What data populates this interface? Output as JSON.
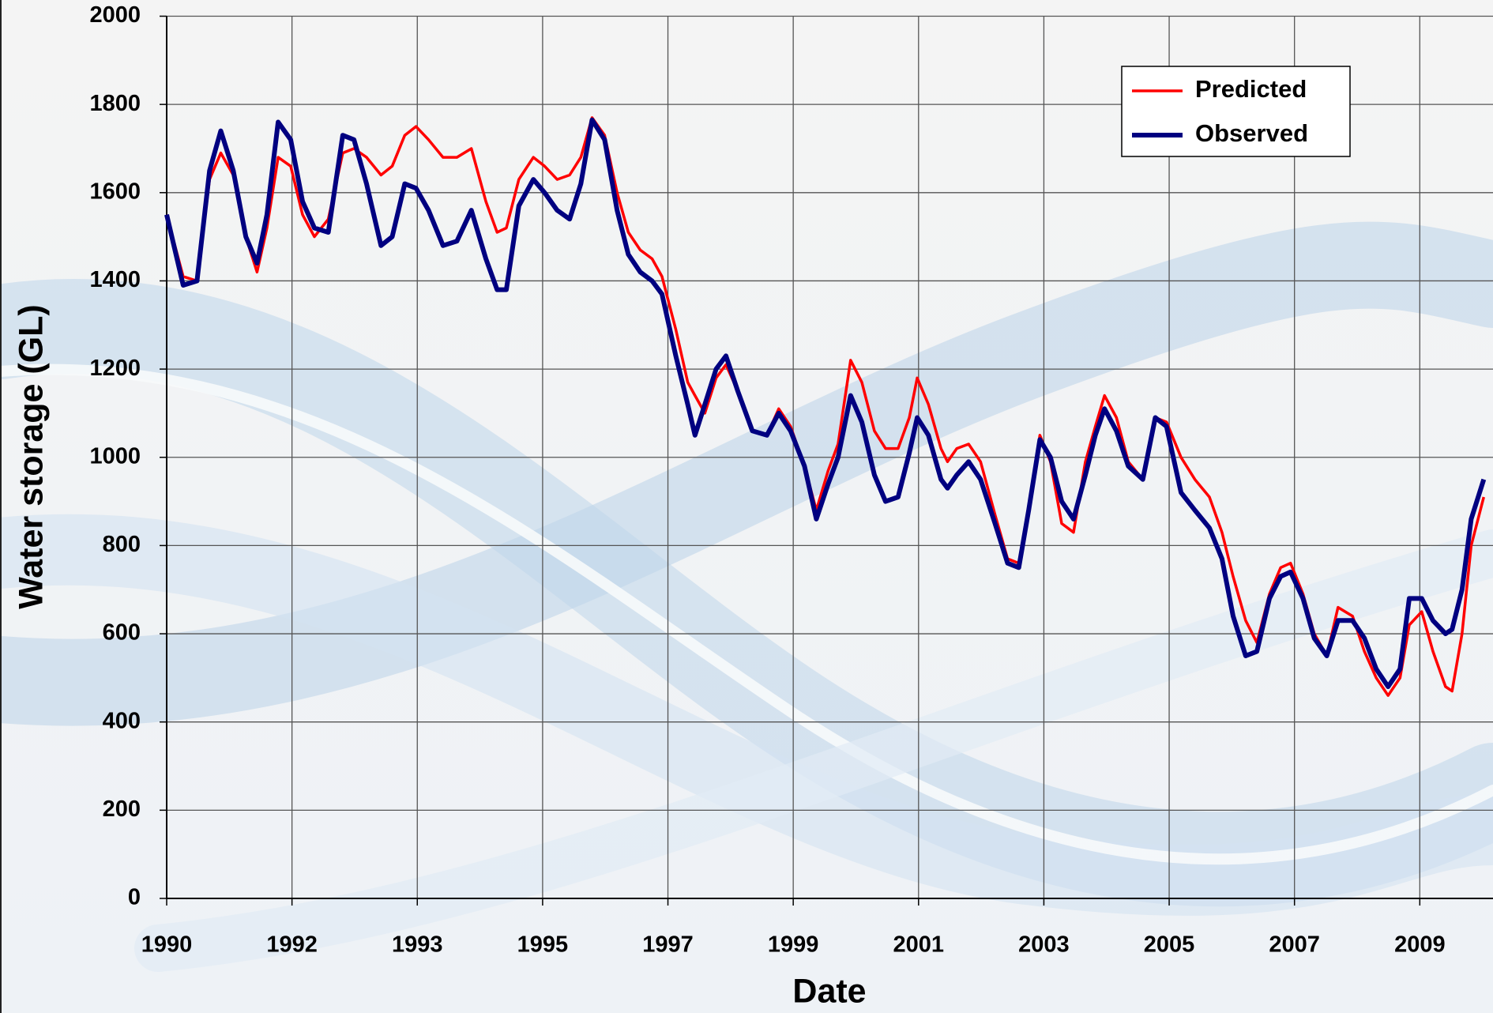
{
  "chart_data": {
    "type": "line",
    "x_label": "Date",
    "y_label": "Water storage (GL)",
    "x": [
      1990.0,
      1990.25,
      1990.46,
      1990.65,
      1990.82,
      1991.01,
      1991.2,
      1991.37,
      1991.52,
      1991.69,
      1991.88,
      1992.06,
      1992.24,
      1992.45,
      1992.67,
      1992.84,
      1993.03,
      1993.25,
      1993.42,
      1993.61,
      1993.78,
      1993.97,
      1994.19,
      1994.4,
      1994.62,
      1994.84,
      1995.01,
      1995.15,
      1995.34,
      1995.56,
      1995.73,
      1995.92,
      1996.11,
      1996.28,
      1996.45,
      1996.64,
      1996.83,
      1997.0,
      1997.18,
      1997.36,
      1997.51,
      1997.72,
      1997.9,
      1998.01,
      1998.16,
      1998.33,
      1998.48,
      1998.66,
      1998.88,
      1999.1,
      1999.28,
      1999.46,
      1999.67,
      1999.85,
      2000.03,
      2000.18,
      2000.37,
      2000.54,
      2000.73,
      2000.9,
      2001.09,
      2001.26,
      2001.38,
      2001.55,
      2001.74,
      2001.84,
      2001.98,
      2002.16,
      2002.34,
      2002.56,
      2002.75,
      2002.92,
      2003.07,
      2003.24,
      2003.4,
      2003.57,
      2003.75,
      2003.93,
      2004.08,
      2004.22,
      2004.4,
      2004.58,
      2004.8,
      2004.99,
      2005.16,
      2005.38,
      2005.59,
      2005.81,
      2006.0,
      2006.17,
      2006.36,
      2006.53,
      2006.72,
      2006.89,
      2007.04,
      2007.23,
      2007.4,
      2007.59,
      2007.76,
      2007.98,
      2008.16,
      2008.34,
      2008.52,
      2008.7,
      2008.84,
      2009.03,
      2009.2,
      2009.39,
      2009.49,
      2009.64,
      2009.78,
      2009.97
    ],
    "series": [
      {
        "name": "Predicted",
        "color": "#ff0000",
        "values": [
          1550,
          1410,
          1400,
          1630,
          1690,
          1640,
          1500,
          1420,
          1520,
          1680,
          1660,
          1550,
          1500,
          1540,
          1690,
          1700,
          1680,
          1640,
          1660,
          1730,
          1750,
          1720,
          1680,
          1680,
          1700,
          1580,
          1510,
          1520,
          1630,
          1680,
          1660,
          1630,
          1640,
          1680,
          1770,
          1730,
          1600,
          1510,
          1470,
          1450,
          1410,
          1290,
          1170,
          1140,
          1100,
          1180,
          1210,
          1150,
          1060,
          1050,
          1110,
          1070,
          980,
          880,
          970,
          1030,
          1220,
          1170,
          1060,
          1020,
          1020,
          1090,
          1180,
          1120,
          1020,
          990,
          1020,
          1030,
          990,
          870,
          770,
          760,
          890,
          1050,
          990,
          850,
          830,
          990,
          1070,
          1140,
          1090,
          990,
          950,
          1090,
          1080,
          1000,
          950,
          910,
          830,
          730,
          630,
          580,
          690,
          750,
          760,
          690,
          600,
          550,
          660,
          640,
          560,
          500,
          460,
          500,
          620,
          650,
          560,
          480,
          470,
          600,
          800,
          910
        ]
      },
      {
        "name": "Observed",
        "color": "#000080",
        "values": [
          1550,
          1390,
          1400,
          1650,
          1740,
          1650,
          1500,
          1440,
          1550,
          1760,
          1720,
          1580,
          1520,
          1510,
          1730,
          1720,
          1620,
          1480,
          1500,
          1620,
          1610,
          1560,
          1480,
          1490,
          1560,
          1450,
          1380,
          1380,
          1570,
          1630,
          1600,
          1560,
          1540,
          1620,
          1765,
          1720,
          1560,
          1460,
          1420,
          1400,
          1370,
          1230,
          1120,
          1050,
          1120,
          1200,
          1230,
          1150,
          1060,
          1050,
          1100,
          1060,
          980,
          860,
          940,
          1000,
          1140,
          1080,
          960,
          900,
          910,
          1010,
          1090,
          1050,
          950,
          930,
          960,
          990,
          950,
          850,
          760,
          750,
          880,
          1040,
          1000,
          900,
          860,
          960,
          1050,
          1110,
          1060,
          980,
          950,
          1090,
          1070,
          920,
          880,
          840,
          770,
          640,
          550,
          560,
          680,
          730,
          740,
          680,
          590,
          550,
          630,
          630,
          590,
          520,
          480,
          520,
          680,
          680,
          630,
          600,
          610,
          700,
          860,
          950
        ]
      }
    ],
    "xlim": [
      1990,
      2010.11
    ],
    "ylim": [
      0,
      2000
    ],
    "xticks": [
      {
        "value": 1990,
        "label": "1990"
      },
      {
        "value": 1991.9,
        "label": "1992"
      },
      {
        "value": 1993.8,
        "label": "1993"
      },
      {
        "value": 1995.7,
        "label": "1995"
      },
      {
        "value": 1997.6,
        "label": "1997"
      },
      {
        "value": 1999.5,
        "label": "1999"
      },
      {
        "value": 2001.4,
        "label": "2001"
      },
      {
        "value": 2003.3,
        "label": "2003"
      },
      {
        "value": 2005.2,
        "label": "2005"
      },
      {
        "value": 2007.1,
        "label": "2007"
      },
      {
        "value": 2009.0,
        "label": "2009"
      }
    ],
    "yticks": [
      0,
      200,
      400,
      600,
      800,
      1000,
      1200,
      1400,
      1600,
      1800,
      2000
    ],
    "grid": true,
    "legend": "upper-right"
  }
}
